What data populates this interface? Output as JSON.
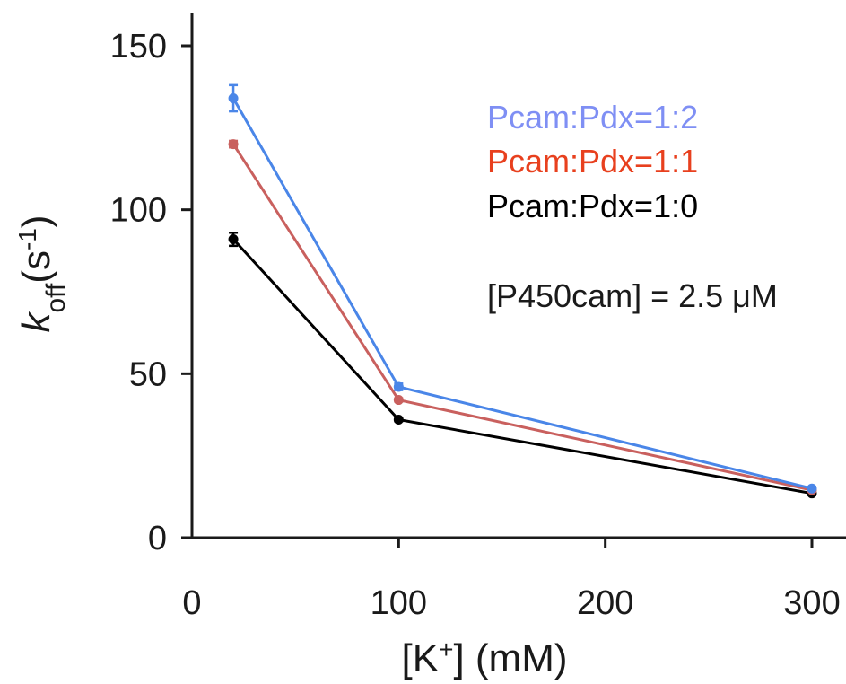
{
  "chart_data": {
    "type": "line",
    "title": "",
    "xlabel": {
      "prefix": "[K",
      "sup": "+",
      "suffix": "] (mM)"
    },
    "ylabel": {
      "main": "k",
      "sub": "off",
      "paren": "(s",
      "sup": "-1",
      "close": ")"
    },
    "xlim": [
      0,
      300
    ],
    "ylim": [
      0,
      150
    ],
    "xticks": [
      "0",
      "100",
      "200",
      "300"
    ],
    "yticks": [
      "0",
      "50",
      "100",
      "150"
    ],
    "x": [
      20,
      100,
      300
    ],
    "series": [
      {
        "name": "Pcam:Pdx=1:2",
        "color": "#4a86e8",
        "legend_color": "#7f8ff4",
        "values": [
          134,
          46,
          15
        ],
        "errors": [
          4,
          1,
          0.5
        ]
      },
      {
        "name": "Pcam:Pdx=1:1",
        "color": "#c9605e",
        "legend_color": "#e8401e",
        "values": [
          120,
          42,
          14.5
        ],
        "errors": [
          1,
          0.5,
          0.5
        ]
      },
      {
        "name": "Pcam:Pdx=1:0",
        "color": "#000000",
        "legend_color": "#000000",
        "values": [
          91,
          36,
          13.5
        ],
        "errors": [
          2,
          0.5,
          0.5
        ]
      }
    ],
    "annotation": {
      "prefix": "[P450cam] = 2.5 ",
      "mu": "μ",
      "suffix": "M"
    },
    "grid": false,
    "legend_position": "top-right"
  }
}
